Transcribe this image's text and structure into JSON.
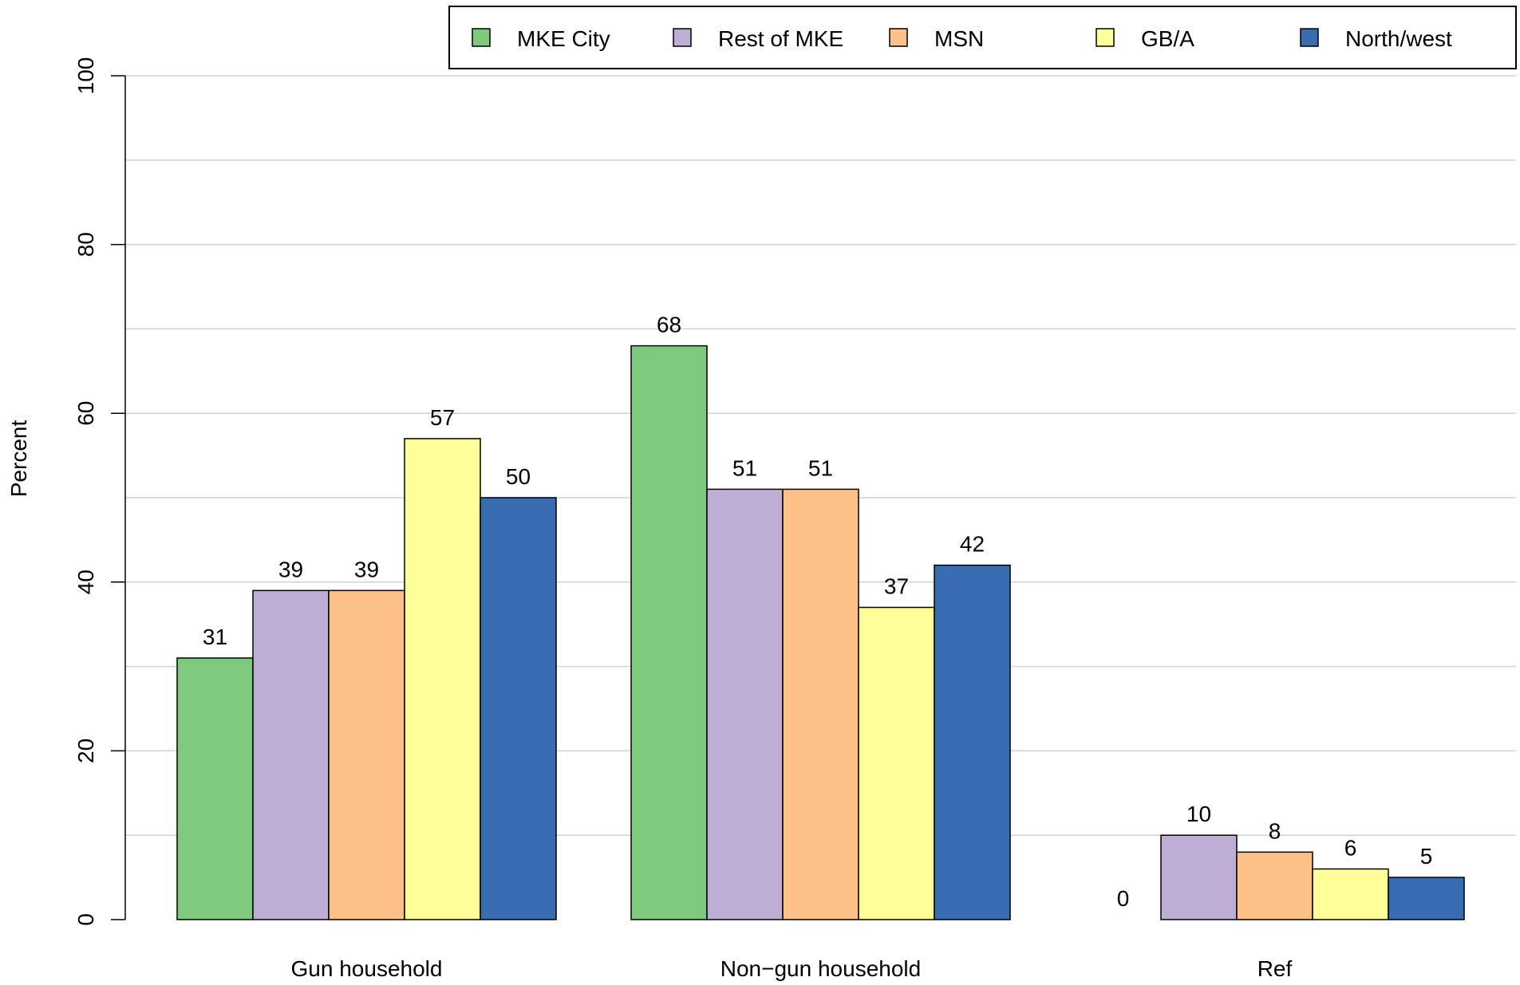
{
  "chart_data": {
    "type": "bar",
    "categories": [
      "Gun household",
      "Non−gun household",
      "Ref"
    ],
    "series": [
      {
        "name": "MKE City",
        "color": "#7fc97f",
        "values": [
          31,
          68,
          0
        ]
      },
      {
        "name": "Rest of MKE",
        "color": "#beaed4",
        "values": [
          39,
          51,
          10
        ]
      },
      {
        "name": "MSN",
        "color": "#fdc086",
        "values": [
          39,
          51,
          8
        ]
      },
      {
        "name": "GB/A",
        "color": "#ffff99",
        "values": [
          57,
          37,
          6
        ]
      },
      {
        "name": "North/west",
        "color": "#386cb0",
        "values": [
          50,
          42,
          5
        ]
      }
    ],
    "ylabel": "Percent",
    "ylim": [
      0,
      100
    ],
    "yticks": [
      0,
      20,
      40,
      60,
      80,
      100
    ],
    "grid_step": 10,
    "grid": true,
    "legend_position": "top-right"
  }
}
